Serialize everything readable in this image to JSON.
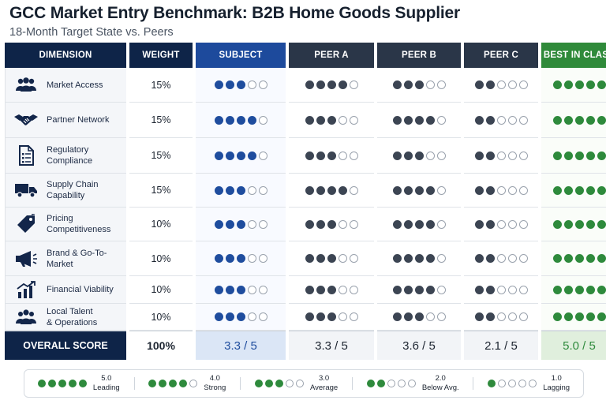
{
  "title": "GCC Market Entry Benchmark: B2B Home Goods Supplier",
  "subtitle": "18-Month Target State vs. Peers",
  "colors": {
    "header_navy": "#0e2448",
    "subject_blue": "#1f4d9e",
    "peer_gray": "#3c4553",
    "best_green": "#2e8a3c"
  },
  "chart_data": {
    "type": "table",
    "scale_max": 5,
    "headers": {
      "dimension": "DIMENSION",
      "weight": "WEIGHT",
      "subject": "SUBJECT",
      "peer_a": "PEER A",
      "peer_b": "PEER B",
      "peer_c": "PEER C",
      "best": "BEST IN CLASS"
    },
    "rows": [
      {
        "dimension": "Market Access",
        "icon": "people-icon",
        "weight": "15%",
        "subject": 3,
        "peer_a": 4,
        "peer_b": 3,
        "peer_c": 2,
        "best": 5
      },
      {
        "dimension": "Partner Network",
        "icon": "handshake-icon",
        "weight": "15%",
        "subject": 4,
        "peer_a": 3,
        "peer_b": 4,
        "peer_c": 2,
        "best": 5
      },
      {
        "dimension": "Regulatory\nCompliance",
        "icon": "document-checklist-icon",
        "weight": "15%",
        "subject": 4,
        "peer_a": 3,
        "peer_b": 3,
        "peer_c": 2,
        "best": 5
      },
      {
        "dimension": "Supply Chain\nCapability",
        "icon": "truck-icon",
        "weight": "15%",
        "subject": 3,
        "peer_a": 4,
        "peer_b": 4,
        "peer_c": 2,
        "best": 5
      },
      {
        "dimension": "Pricing\nCompetitiveness",
        "icon": "price-tag-icon",
        "weight": "10%",
        "subject": 3,
        "peer_a": 3,
        "peer_b": 4,
        "peer_c": 2,
        "best": 5
      },
      {
        "dimension": "Brand & Go-To-\nMarket",
        "icon": "megaphone-icon",
        "weight": "10%",
        "subject": 3,
        "peer_a": 3,
        "peer_b": 4,
        "peer_c": 2,
        "best": 5
      },
      {
        "dimension": "Financial Viability",
        "icon": "bar-chart-icon",
        "weight": "10%",
        "subject": 3,
        "peer_a": 3,
        "peer_b": 4,
        "peer_c": 2,
        "best": 5
      },
      {
        "dimension": "Local Talent\n& Operations",
        "icon": "team-icon",
        "weight": "10%",
        "subject": 3,
        "peer_a": 3,
        "peer_b": 3,
        "peer_c": 2,
        "best": 5
      }
    ],
    "overall": {
      "label": "OVERALL SCORE",
      "weight": "100%",
      "subject": "3.3 / 5",
      "peer_a": "3.3 / 5",
      "peer_b": "3.6 / 5",
      "peer_c": "2.1 / 5",
      "best": "5.0 / 5"
    },
    "legend": [
      {
        "dots": 5,
        "value": "5.0",
        "label": "Leading"
      },
      {
        "dots": 4,
        "value": "4.0",
        "label": "Strong"
      },
      {
        "dots": 3,
        "value": "3.0",
        "label": "Average"
      },
      {
        "dots": 2,
        "value": "2.0",
        "label": "Below Avg."
      },
      {
        "dots": 1,
        "value": "1.0",
        "label": "Lagging"
      }
    ]
  }
}
